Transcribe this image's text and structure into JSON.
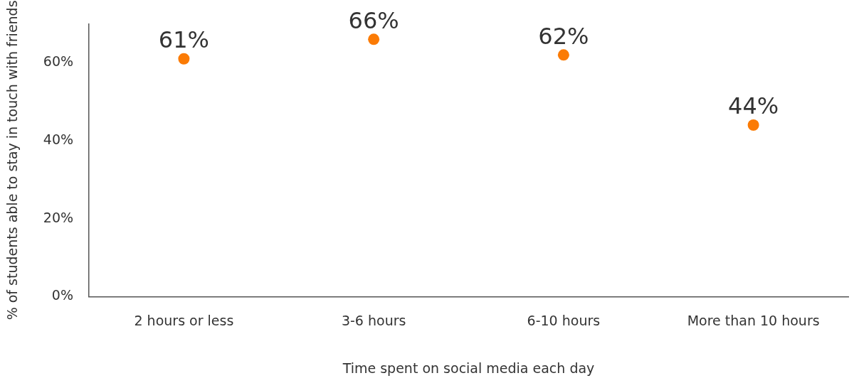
{
  "chart_data": {
    "type": "scatter",
    "xlabel": "Time spent on social media each day",
    "ylabel": "% of students able to stay in touch with friends",
    "categories": [
      "2 hours or less",
      "3-6 hours",
      "6-10 hours",
      "More than 10 hours"
    ],
    "values": [
      61,
      66,
      62,
      44
    ],
    "color": "#fb7b05",
    "marker": "circle",
    "value_labels": [
      "61%",
      "66%",
      "62%",
      "44%"
    ],
    "ylim": [
      0,
      70
    ],
    "yticks": [
      {
        "value": 0,
        "label": "0%"
      },
      {
        "value": 20,
        "label": "20%"
      },
      {
        "value": 40,
        "label": "40%"
      },
      {
        "value": 60,
        "label": "60%"
      }
    ],
    "grid": false,
    "legend": false
  }
}
